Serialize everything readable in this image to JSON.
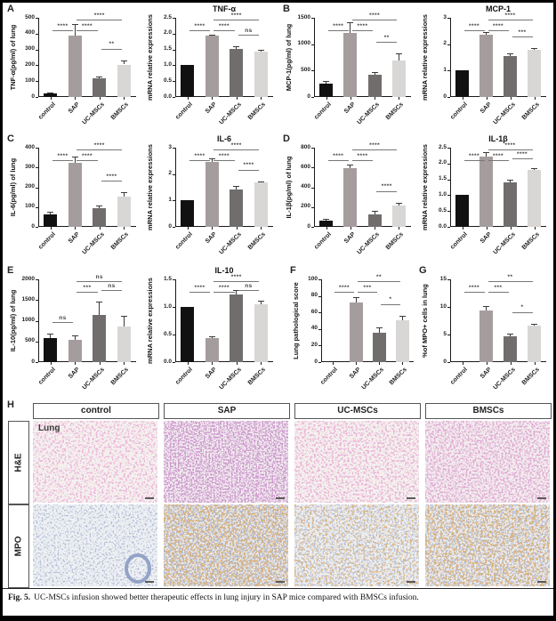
{
  "figure": {
    "caption_prefix": "Fig. 5.",
    "caption_text": "UC-MSCs infusion showed better therapeutic effects in lung injury in SAP mice compared with BMSCs infusion."
  },
  "bar_colors": [
    "#111111",
    "#a59d9d",
    "#716d6d",
    "#d9d7d5"
  ],
  "chart_data": [
    {
      "panel": "A",
      "title": "",
      "ylabel": "TNF-α(pg/ml) of lung",
      "type": "bar",
      "categories": [
        "control",
        "SAP",
        "UC-MSCs",
        "BMSCs"
      ],
      "values": [
        25,
        390,
        118,
        205
      ],
      "errors": [
        5,
        70,
        13,
        28
      ],
      "ymax": 500,
      "yticks": [
        "0",
        "100",
        "200",
        "300",
        "400",
        "500"
      ],
      "sig": [
        [
          0,
          1,
          "****",
          1
        ],
        [
          1,
          2,
          "****",
          1
        ],
        [
          1,
          3,
          "****",
          2
        ],
        [
          2,
          3,
          "**",
          0
        ]
      ]
    },
    {
      "panel": "",
      "title": "TNF-α",
      "ylabel": "mRNA relative expressions",
      "type": "bar",
      "categories": [
        "control",
        "SAP",
        "UC-MSCs",
        "BMSCs"
      ],
      "values": [
        1.0,
        1.93,
        1.53,
        1.43
      ],
      "errors": [
        0,
        0.04,
        0.07,
        0.05
      ],
      "ymax": 2.5,
      "yticks": [
        "0.0",
        "0.5",
        "1.0",
        "1.5",
        "2.0",
        "2.5"
      ],
      "sig": [
        [
          0,
          1,
          "****",
          1
        ],
        [
          1,
          2,
          "****",
          1
        ],
        [
          1,
          3,
          "****",
          2
        ],
        [
          2,
          3,
          "ns",
          0
        ]
      ]
    },
    {
      "panel": "B",
      "title": "",
      "ylabel": "MCP-1(pg/ml) of lung",
      "type": "bar",
      "categories": [
        "control",
        "SAP",
        "UC-MSCs",
        "BMSCs"
      ],
      "values": [
        250,
        1220,
        420,
        690
      ],
      "errors": [
        60,
        190,
        60,
        130
      ],
      "ymax": 1500,
      "yticks": [
        "0",
        "500",
        "1000",
        "1500"
      ],
      "sig": [
        [
          0,
          1,
          "****",
          1
        ],
        [
          1,
          2,
          "****",
          1
        ],
        [
          1,
          3,
          "****",
          2
        ],
        [
          2,
          3,
          "**",
          0
        ]
      ]
    },
    {
      "panel": "",
      "title": "MCP-1",
      "ylabel": "mRNA relative expressions",
      "type": "bar",
      "categories": [
        "control",
        "SAP",
        "UC-MSCs",
        "BMSCs"
      ],
      "values": [
        1.0,
        2.35,
        1.55,
        1.8
      ],
      "errors": [
        0,
        0.1,
        0.1,
        0.04
      ],
      "ymax": 3,
      "yticks": [
        "0",
        "1",
        "2",
        "3"
      ],
      "sig": [
        [
          0,
          1,
          "****",
          1
        ],
        [
          1,
          2,
          "****",
          1
        ],
        [
          1,
          3,
          "****",
          2
        ],
        [
          2,
          3,
          "***",
          0
        ]
      ]
    },
    {
      "panel": "C",
      "title": "",
      "ylabel": "IL-6(pg/ml) of lung",
      "type": "bar",
      "categories": [
        "control",
        "SAP",
        "UC-MSCs",
        "BMSCs"
      ],
      "values": [
        62,
        325,
        95,
        155
      ],
      "errors": [
        15,
        30,
        12,
        20
      ],
      "ymax": 400,
      "yticks": [
        "0",
        "100",
        "200",
        "300",
        "400"
      ],
      "sig": [
        [
          0,
          1,
          "****",
          1
        ],
        [
          1,
          2,
          "****",
          1
        ],
        [
          1,
          3,
          "****",
          2
        ],
        [
          2,
          3,
          "****",
          0
        ]
      ]
    },
    {
      "panel": "",
      "title": "IL-6",
      "ylabel": "mRNA relative expressions",
      "type": "bar",
      "categories": [
        "control",
        "SAP",
        "UC-MSCs",
        "BMSCs"
      ],
      "values": [
        1.0,
        2.45,
        1.43,
        1.68
      ],
      "errors": [
        0,
        0.13,
        0.12,
        0.04
      ],
      "ymax": 3,
      "yticks": [
        "0",
        "1",
        "2",
        "3"
      ],
      "sig": [
        [
          0,
          1,
          "****",
          1
        ],
        [
          1,
          2,
          "****",
          1
        ],
        [
          1,
          3,
          "****",
          2
        ],
        [
          2,
          3,
          "****",
          0
        ]
      ]
    },
    {
      "panel": "D",
      "title": "",
      "ylabel": "IL-1β(pg/ml) of lung",
      "type": "bar",
      "categories": [
        "control",
        "SAP",
        "UC-MSCs",
        "BMSCs"
      ],
      "values": [
        65,
        590,
        130,
        215
      ],
      "errors": [
        20,
        40,
        35,
        30
      ],
      "ymax": 800,
      "yticks": [
        "0",
        "200",
        "400",
        "600",
        "800"
      ],
      "sig": [
        [
          0,
          1,
          "****",
          1
        ],
        [
          1,
          2,
          "****",
          1
        ],
        [
          1,
          3,
          "****",
          2
        ],
        [
          2,
          3,
          "****",
          0
        ]
      ]
    },
    {
      "panel": "",
      "title": "IL-1β",
      "ylabel": "mRNA relative expressions",
      "type": "bar",
      "categories": [
        "control",
        "SAP",
        "UC-MSCs",
        "BMSCs"
      ],
      "values": [
        1.0,
        2.22,
        1.4,
        1.8
      ],
      "errors": [
        0,
        0.15,
        0.1,
        0.05
      ],
      "ymax": 2.5,
      "yticks": [
        "0.0",
        "0.5",
        "1.0",
        "1.5",
        "2.0",
        "2.5"
      ],
      "sig": [
        [
          0,
          1,
          "****",
          1
        ],
        [
          1,
          2,
          "****",
          1
        ],
        [
          1,
          3,
          "****",
          2
        ],
        [
          2,
          3,
          "****",
          0
        ]
      ]
    },
    {
      "panel": "E",
      "title": "",
      "ylabel": "IL-10(pg/ml) of lung",
      "type": "bar",
      "categories": [
        "control",
        "SAP",
        "UC-MSCs",
        "BMSCs"
      ],
      "values": [
        570,
        545,
        1140,
        860
      ],
      "errors": [
        110,
        100,
        320,
        260
      ],
      "ymax": 2000,
      "yticks": [
        "0",
        "500",
        "1000",
        "1500",
        "2000"
      ],
      "sig": [
        [
          0,
          1,
          "ns",
          0
        ],
        [
          1,
          2,
          "***",
          1
        ],
        [
          1,
          3,
          "ns",
          2
        ],
        [
          2,
          3,
          "ns",
          0
        ]
      ]
    },
    {
      "panel": "",
      "title": "IL-10",
      "ylabel": "mRNA relative expressions",
      "type": "bar",
      "categories": [
        "control",
        "SAP",
        "UC-MSCs",
        "BMSCs"
      ],
      "values": [
        1.0,
        0.44,
        1.22,
        1.05
      ],
      "errors": [
        0,
        0.03,
        0.08,
        0.06
      ],
      "ymax": 1.5,
      "yticks": [
        "0.0",
        "0.5",
        "1.0",
        "1.5"
      ],
      "sig": [
        [
          0,
          1,
          "****",
          1
        ],
        [
          1,
          2,
          "****",
          1
        ],
        [
          1,
          3,
          "****",
          2
        ],
        [
          2,
          3,
          "ns",
          0
        ]
      ]
    },
    {
      "panel": "F",
      "title": "",
      "ylabel": "Lung pathological score",
      "type": "bar",
      "categories": [
        "control",
        "SAP",
        "UC-MSCs",
        "BMSCs"
      ],
      "values": [
        0,
        72,
        35,
        51
      ],
      "errors": [
        0,
        7,
        7,
        5
      ],
      "ymax": 100,
      "yticks": [
        "0",
        "20",
        "40",
        "60",
        "80",
        "100"
      ],
      "sig": [
        [
          0,
          1,
          "****",
          1
        ],
        [
          1,
          2,
          "***",
          1
        ],
        [
          1,
          3,
          "**",
          2
        ],
        [
          2,
          3,
          "*",
          0
        ]
      ]
    },
    {
      "panel": "G",
      "title": "",
      "ylabel": "%of MPO+ cells in lung",
      "type": "bar",
      "categories": [
        "control",
        "SAP",
        "UC-MSCs",
        "BMSCs"
      ],
      "values": [
        0,
        9.4,
        4.7,
        6.6
      ],
      "errors": [
        0,
        0.7,
        0.4,
        0.4
      ],
      "ymax": 15,
      "yticks": [
        "0",
        "5",
        "10",
        "15"
      ],
      "sig": [
        [
          0,
          1,
          "****",
          1
        ],
        [
          1,
          2,
          "***",
          1
        ],
        [
          1,
          3,
          "**",
          2
        ],
        [
          2,
          3,
          "*",
          0
        ]
      ]
    }
  ],
  "panel_h": {
    "letter": "H",
    "columns": [
      "control",
      "SAP",
      "UC-MSCs",
      "BMSCs"
    ],
    "row_labels": [
      "H&E",
      "MPO"
    ],
    "tissue_label": "Lung"
  }
}
